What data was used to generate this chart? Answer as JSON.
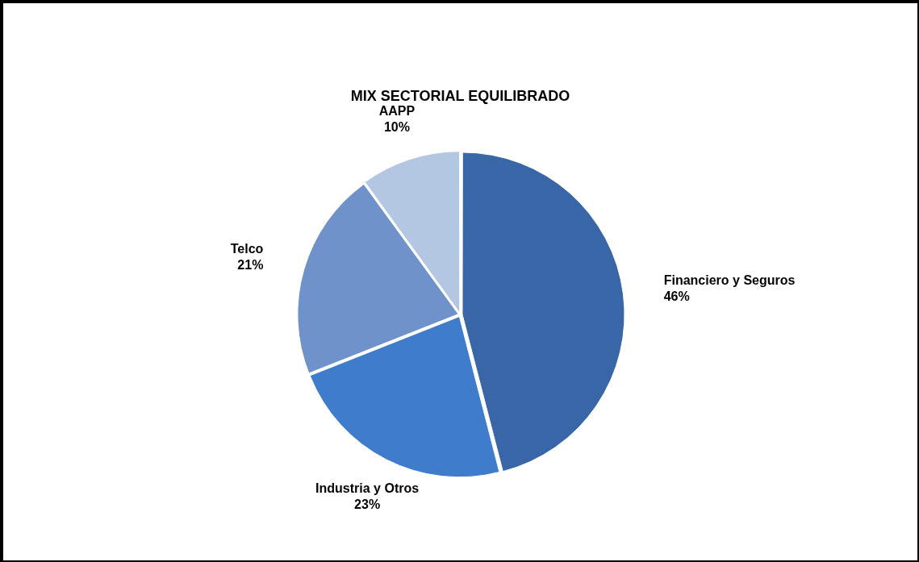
{
  "chart_data": {
    "type": "pie",
    "title": "MIX SECTORIAL EQUILIBRADO",
    "categories": [
      "Financiero y Seguros",
      "Industria y Otros",
      "Telco",
      "AAPP"
    ],
    "values": [
      46,
      23,
      21,
      10
    ],
    "colors": [
      "#3866a6",
      "#3f7dcc",
      "#7092ca",
      "#b3c6e2"
    ],
    "value_labels": [
      "46%",
      "23%",
      "21%",
      "10%"
    ],
    "legend": false
  }
}
